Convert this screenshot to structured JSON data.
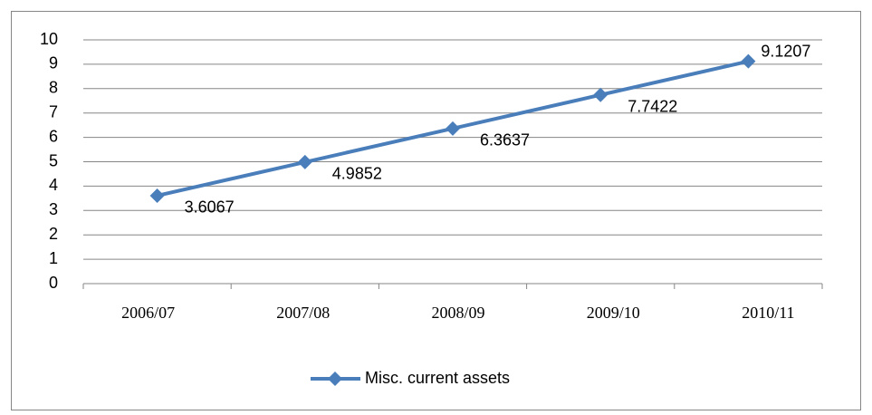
{
  "chart_data": {
    "type": "line",
    "categories": [
      "2006/07",
      "2007/08",
      "2008/09",
      "2009/10",
      "2010/11"
    ],
    "series": [
      {
        "name": "Misc. current assets",
        "color": "#4a7ebb",
        "values": [
          3.6067,
          4.9852,
          6.3637,
          7.7422,
          9.1207
        ]
      }
    ],
    "ylim": [
      0,
      10
    ],
    "yticks": [
      0,
      1,
      2,
      3,
      4,
      5,
      6,
      7,
      8,
      9,
      10
    ],
    "grid": true,
    "legend": "bottom"
  }
}
